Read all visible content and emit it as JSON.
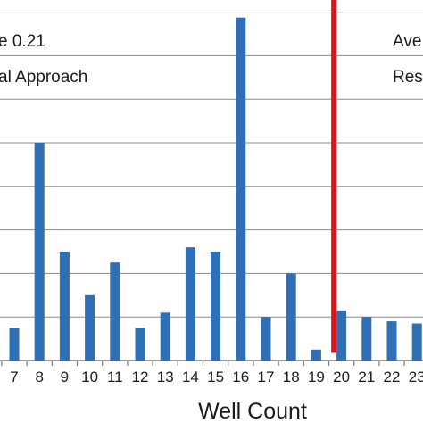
{
  "chart_data": {
    "type": "bar",
    "xlabel": "Well Count",
    "categories": [
      "7",
      "8",
      "9",
      "10",
      "11",
      "12",
      "13",
      "14",
      "15",
      "16",
      "17",
      "18",
      "19",
      "20",
      "21",
      "22",
      "23"
    ],
    "values": [
      3,
      20,
      10,
      6,
      9,
      3,
      4.4,
      10.4,
      10,
      31.5,
      4,
      8,
      1,
      4.6,
      4,
      3.6,
      3.4
    ],
    "ylim": [
      0,
      40
    ],
    "y_gridlines": [
      0,
      4,
      8,
      12,
      16,
      20,
      24,
      28,
      32,
      36
    ],
    "bar_color": "#2e6fb6",
    "average_line": {
      "x": 19.7,
      "top": 38.4,
      "bottom": 0.7,
      "color": "#e0121a"
    },
    "annotations": {
      "left_line_1": "e 0.21",
      "left_line_2": "al Approach",
      "right_line_1": "Ave",
      "right_line_2": "Res"
    },
    "grid": true
  }
}
